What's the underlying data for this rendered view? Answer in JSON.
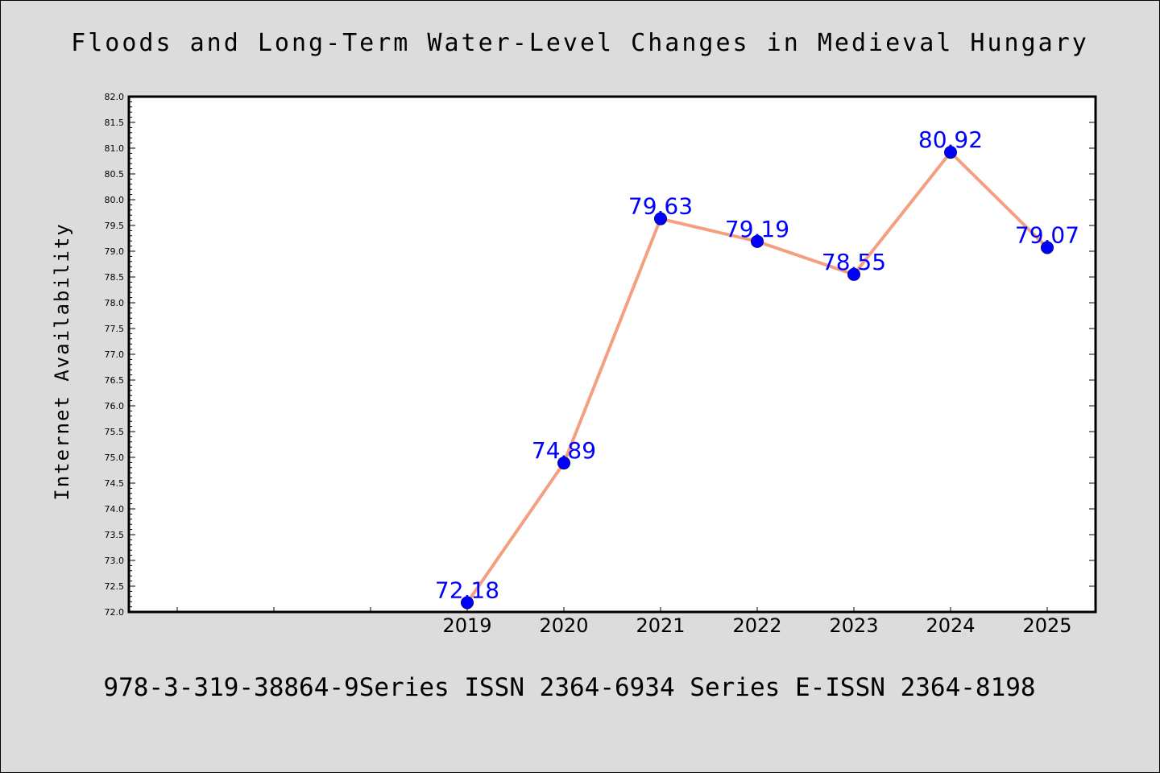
{
  "chart_data": {
    "type": "line",
    "title": "Floods and Long-Term Water-Level Changes in Medieval Hungary",
    "xlabel": "",
    "ylabel": "Internet Availability",
    "footer": "978-3-319-38864-9Series ISSN 2364-6934 Series E-ISSN 2364-8198",
    "categories": [
      "2019",
      "2020",
      "2021",
      "2022",
      "2023",
      "2024",
      "2025"
    ],
    "series": [
      {
        "values": [
          72.18,
          74.89,
          79.63,
          79.19,
          78.55,
          80.92,
          79.07
        ],
        "labels": [
          "72.18",
          "74.89",
          "79.63",
          "79.19",
          "78.55",
          "80.92",
          "79.07"
        ]
      }
    ],
    "ylim": [
      72.0,
      82.0
    ],
    "yticks": [
      "72.0",
      "72.5",
      "73.0",
      "73.5",
      "74.0",
      "74.5",
      "75.0",
      "75.5",
      "76.0",
      "76.5",
      "77.0",
      "77.5",
      "78.0",
      "78.5",
      "79.0",
      "79.5",
      "80.0",
      "80.5",
      "81.0",
      "81.5",
      "82.0"
    ],
    "grid": false,
    "line_color": "#f4a080",
    "marker_color": "#0000ff",
    "label_color": "#0000ff",
    "background_color": "#dcdcdc",
    "plot_background": "#ffffff"
  }
}
